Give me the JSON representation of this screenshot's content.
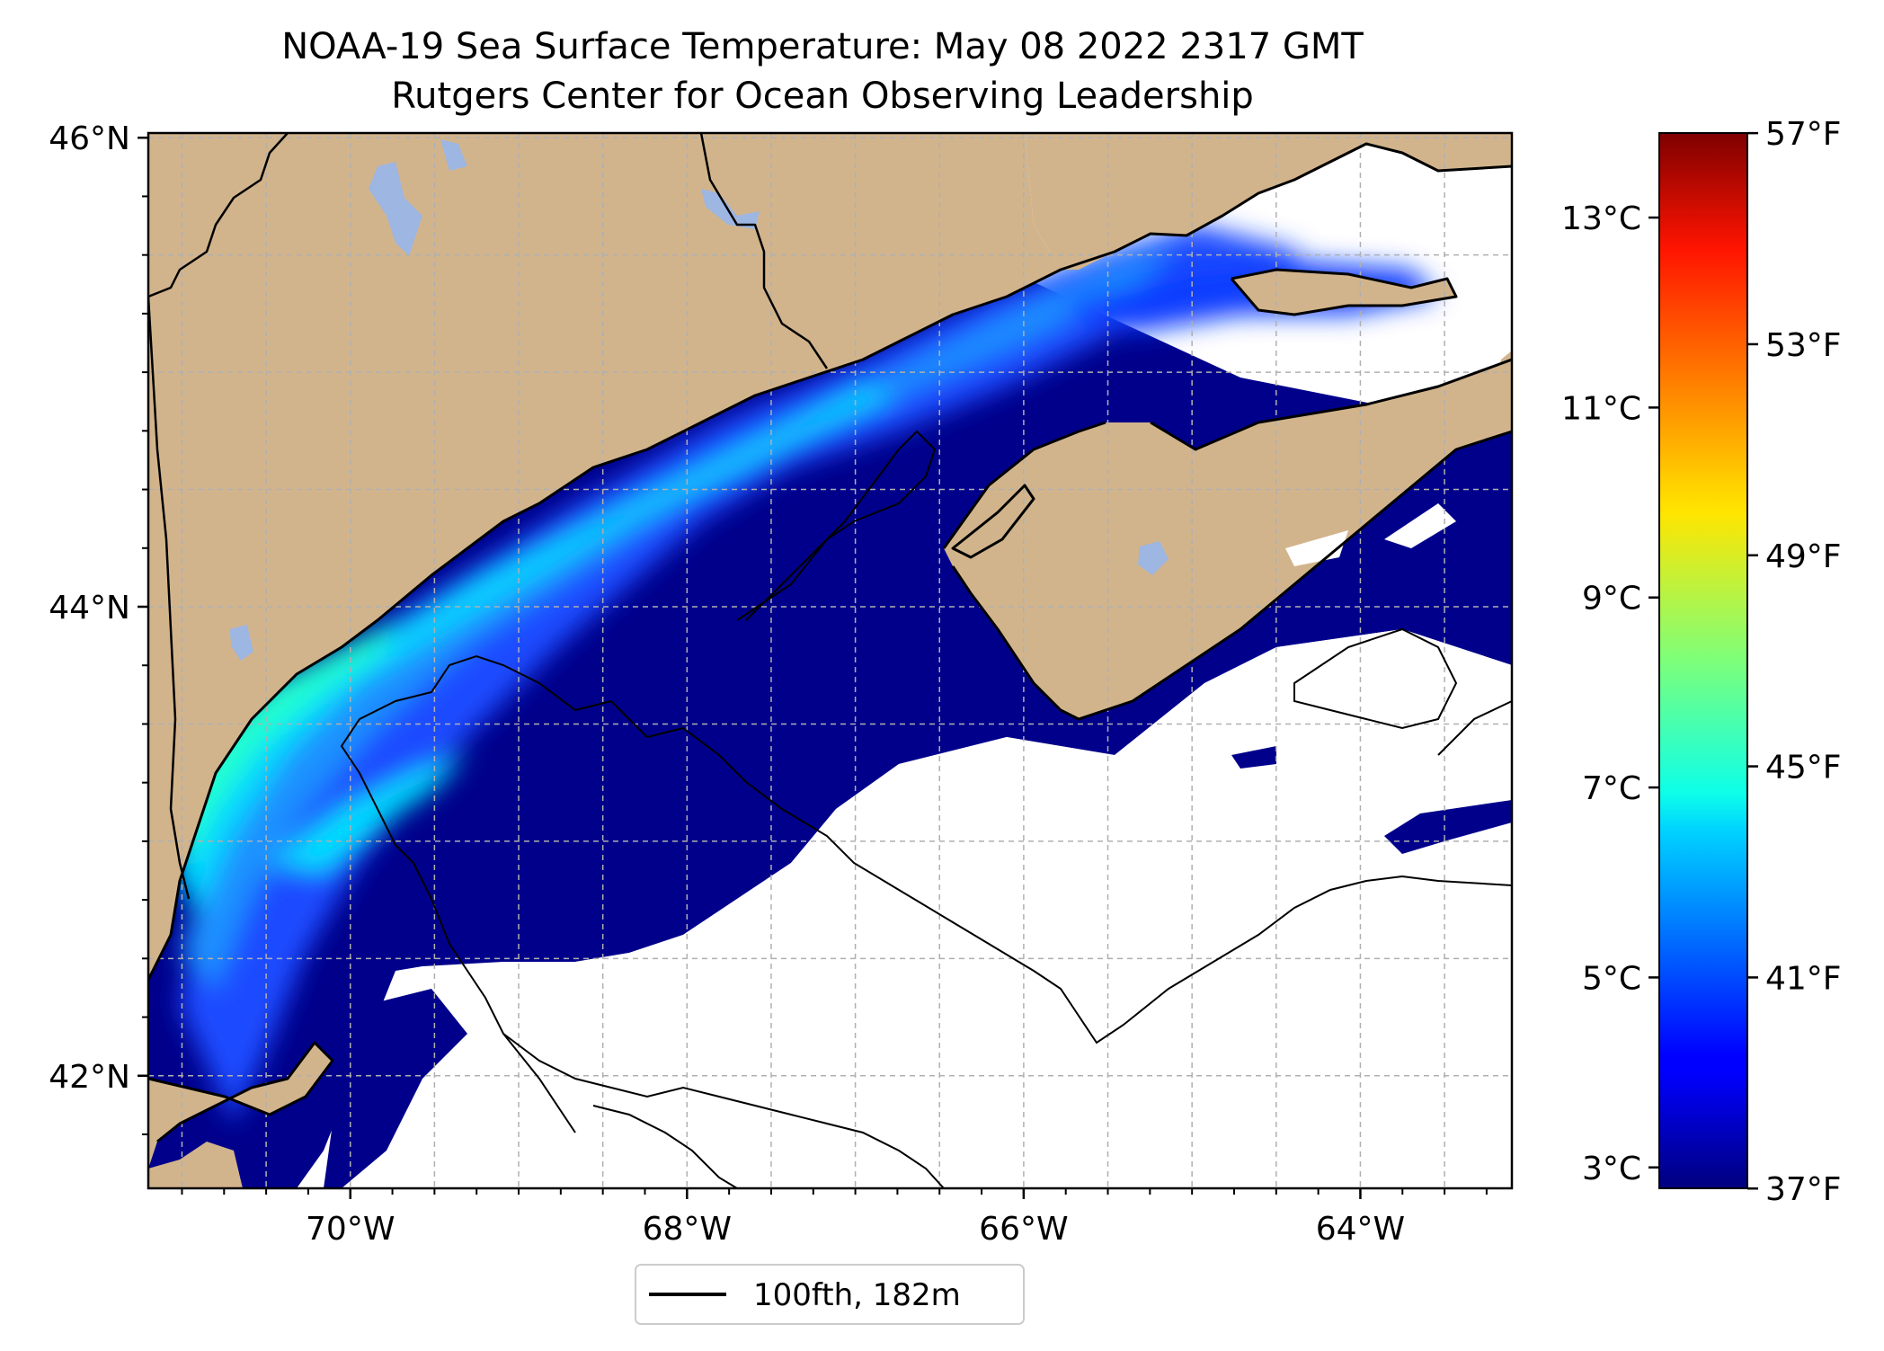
{
  "title": {
    "line1": "NOAA-19 Sea Surface Temperature: May 08 2022 2317 GMT",
    "line2": "Rutgers Center for Ocean Observing Leadership"
  },
  "colors": {
    "land": "#d2b48c",
    "lake": "#9db6e2",
    "no_data": "#ffffff",
    "coast": "#000000",
    "grid": "#b0b0b0"
  },
  "map": {
    "lon_range": [
      -71.2,
      -63.1
    ],
    "lat_range": [
      41.52,
      46.02
    ],
    "lon_ticks": [
      {
        "value": -70,
        "label": "70°W"
      },
      {
        "value": -68,
        "label": "68°W"
      },
      {
        "value": -66,
        "label": "66°W"
      },
      {
        "value": -64,
        "label": "64°W"
      }
    ],
    "lat_ticks": [
      {
        "value": 42,
        "label": "42°N"
      },
      {
        "value": 44,
        "label": "44°N"
      },
      {
        "value": 46,
        "label": "46°N"
      }
    ],
    "grid": true
  },
  "colorbar": {
    "colormap": "jet",
    "celsius_range": [
      2.78,
      13.89
    ],
    "celsius_ticks": [
      {
        "value": 3,
        "label": "3°C"
      },
      {
        "value": 5,
        "label": "5°C"
      },
      {
        "value": 7,
        "label": "7°C"
      },
      {
        "value": 9,
        "label": "9°C"
      },
      {
        "value": 11,
        "label": "11°C"
      },
      {
        "value": 13,
        "label": "13°C"
      }
    ],
    "fahrenheit_ticks": [
      {
        "value": 37,
        "label": "37°F"
      },
      {
        "value": 41,
        "label": "41°F"
      },
      {
        "value": 45,
        "label": "45°F"
      },
      {
        "value": 49,
        "label": "49°F"
      },
      {
        "value": 53,
        "label": "53°F"
      },
      {
        "value": 57,
        "label": "57°F"
      }
    ]
  },
  "legend": {
    "label": "100fth, 182m",
    "location": "below map, centered"
  }
}
